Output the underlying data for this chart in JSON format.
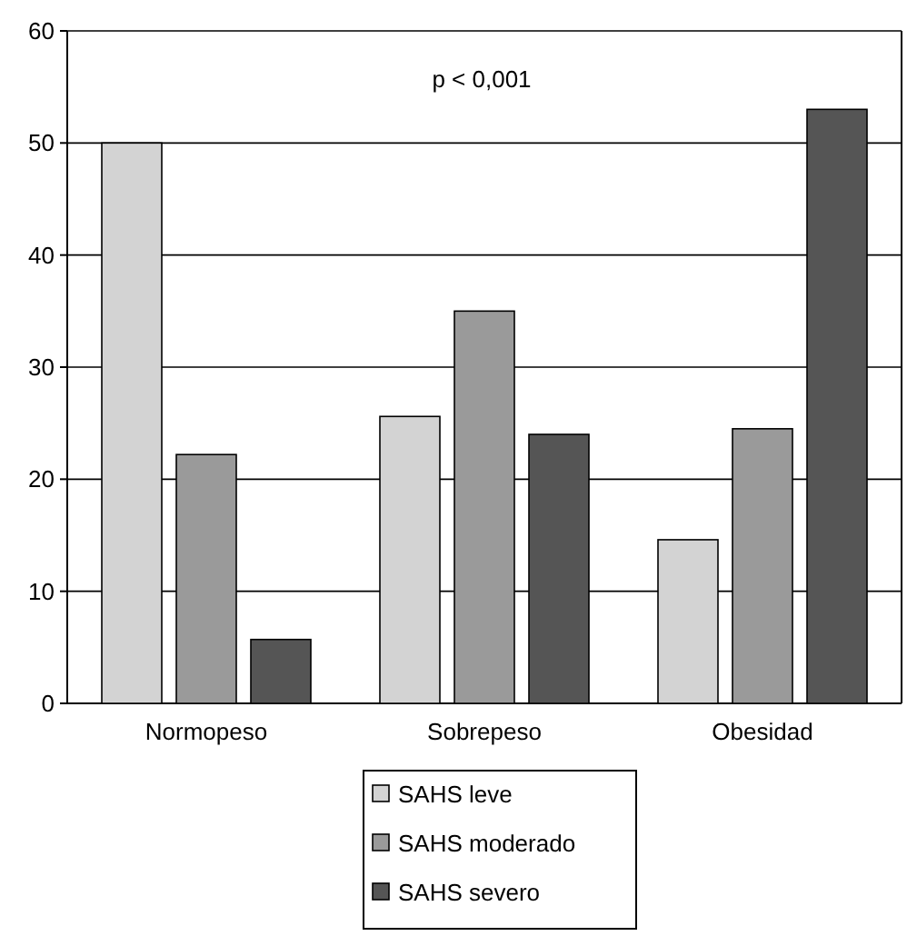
{
  "chart_data": {
    "type": "bar",
    "categories": [
      "Normopeso",
      "Sobrepeso",
      "Obesidad"
    ],
    "series": [
      {
        "name": "SAHS leve",
        "color": "#d3d3d3",
        "values": [
          50,
          25.6,
          14.6
        ]
      },
      {
        "name": "SAHS moderado",
        "color": "#9a9a9a",
        "values": [
          22.2,
          35,
          24.5
        ]
      },
      {
        "name": "SAHS severo",
        "color": "#555555",
        "values": [
          5.7,
          24,
          53
        ]
      }
    ],
    "ylim": [
      0,
      60
    ],
    "yticks": [
      0,
      10,
      20,
      30,
      40,
      50,
      60
    ],
    "grid": "y",
    "legend": "bottom",
    "annotations": [
      "p < 0,001"
    ]
  }
}
